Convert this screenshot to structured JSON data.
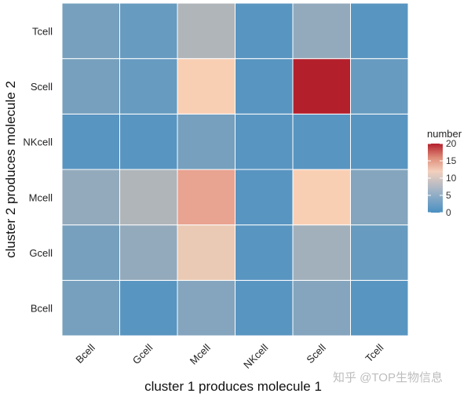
{
  "chart_data": {
    "type": "heatmap",
    "x_categories": [
      "Bcell",
      "Gcell",
      "Mcell",
      "NKcell",
      "Scell",
      "Tcell"
    ],
    "y_categories": [
      "Bcell",
      "Gcell",
      "Mcell",
      "NKcell",
      "Scell",
      "Tcell"
    ],
    "xlabel": "cluster 1 produces molecule 1",
    "ylabel": "cluster 2 produces molecule 2",
    "values": [
      [
        3,
        1,
        4,
        1,
        4,
        1
      ],
      [
        3,
        5,
        11,
        1,
        6,
        2
      ],
      [
        5,
        7,
        14,
        1,
        12,
        4
      ],
      [
        1,
        1,
        3,
        1,
        1,
        1
      ],
      [
        3,
        2,
        12,
        1,
        20,
        2
      ],
      [
        3,
        2,
        7,
        1,
        5,
        1
      ]
    ],
    "legend": {
      "title": "number",
      "min": 0,
      "max": 20,
      "ticks": [
        0,
        5,
        10,
        15,
        20
      ],
      "colors": {
        "low": "#4a90c2",
        "mid": "#f9cfb3",
        "high": "#b41f2c"
      },
      "midpoint": 12
    },
    "grid": true
  },
  "watermark": "知乎 @TOP生物信息"
}
